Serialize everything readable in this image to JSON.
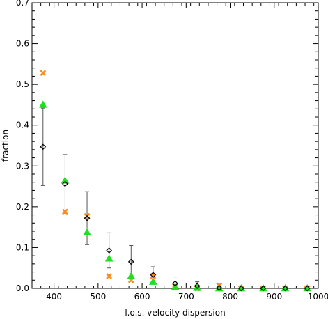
{
  "chart_data": {
    "type": "scatter",
    "xlabel": "l.o.s. velocity dispersion",
    "ylabel": "fraction",
    "xlim": [
      350,
      1000
    ],
    "ylim": [
      0,
      0.7
    ],
    "xticks": [
      400,
      500,
      600,
      700,
      800,
      900,
      1000
    ],
    "yticks": [
      0.0,
      0.1,
      0.2,
      0.3,
      0.4,
      0.5,
      0.6,
      0.7
    ],
    "xtick_labels": [
      "400",
      "500",
      "600",
      "700",
      "800",
      "900",
      "1000"
    ],
    "ytick_labels": [
      "0.0",
      "0.1",
      "0.2",
      "0.3",
      "0.4",
      "0.5",
      "0.6",
      "0.7"
    ],
    "series": [
      {
        "marker": "diamond",
        "color": "#000000",
        "x": [
          375,
          425,
          475,
          525,
          575,
          625,
          675,
          725,
          775,
          825,
          875,
          925,
          975
        ],
        "y": [
          0.347,
          0.256,
          0.172,
          0.093,
          0.065,
          0.033,
          0.012,
          0.006,
          0.001,
          0.0,
          0.0,
          0.0,
          0.0
        ],
        "err": [
          0.095,
          0.072,
          0.065,
          0.043,
          0.04,
          0.02,
          0.016,
          0.01,
          0.002,
          0.0,
          0.0,
          0.0,
          0.0
        ]
      },
      {
        "marker": "triangle",
        "color": "#22dd22",
        "x": [
          375,
          425,
          475,
          525,
          575,
          625,
          675,
          725,
          775,
          825,
          875,
          925,
          975
        ],
        "y": [
          0.45,
          0.264,
          0.137,
          0.073,
          0.03,
          0.016,
          0.003,
          0.001,
          0.0,
          0.0,
          0.0,
          0.0,
          0.0
        ]
      },
      {
        "marker": "x",
        "color": "#ff8c1a",
        "x": [
          375,
          425,
          475,
          525,
          575,
          625,
          675,
          725,
          775,
          825,
          875,
          925,
          975
        ],
        "y": [
          0.528,
          0.188,
          0.177,
          0.03,
          0.02,
          0.03,
          0.005,
          0.0,
          0.007,
          0.0,
          0.0,
          0.0,
          0.0
        ]
      }
    ]
  }
}
